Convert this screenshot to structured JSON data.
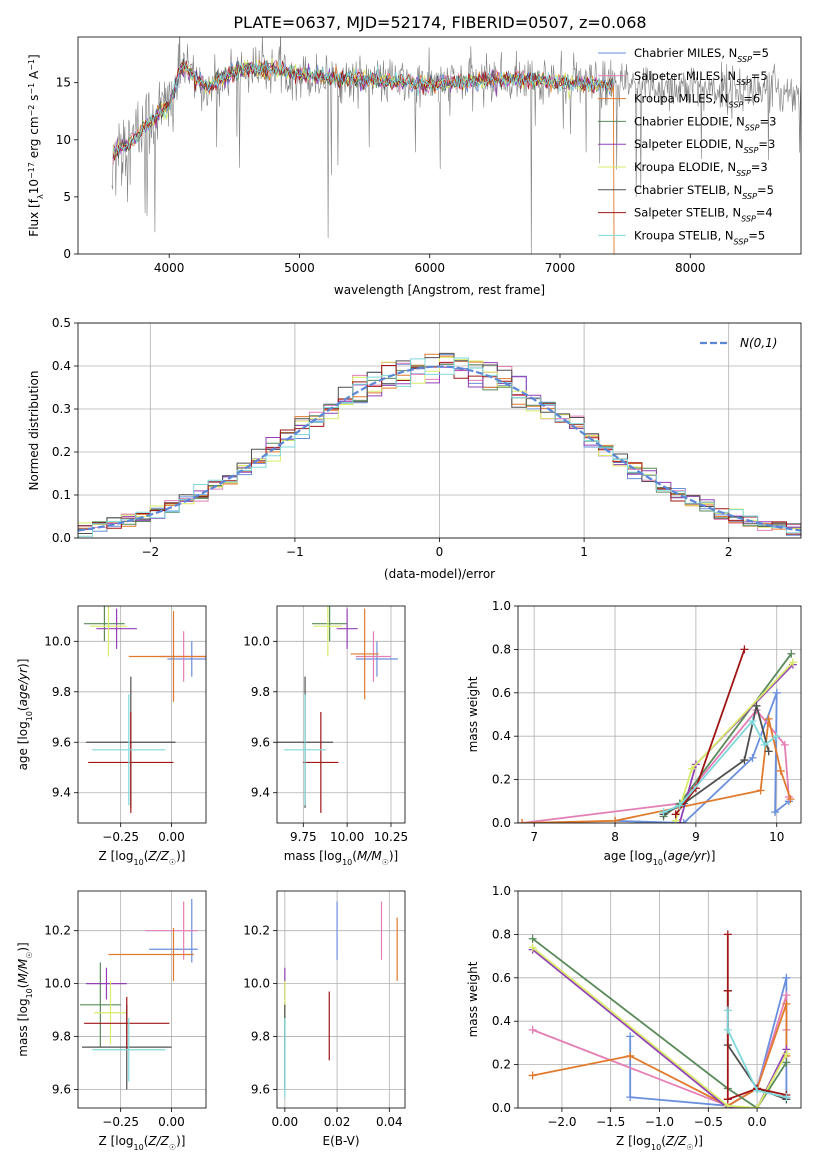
{
  "figure_title": "PLATE=0637, MJD=52174, FIBERID=0507, z=0.068",
  "colors": {
    "Chabrier MILES": "#6a8fdc",
    "Salpeter MILES": "#e47fb5",
    "Kroupa MILES": "#e07a2d",
    "Chabrier ELODIE": "#5a8a5a",
    "Salpeter ELODIE": "#9340b8",
    "Kroupa ELODIE": "#d9ec6a",
    "Chabrier STELIB": "#505050",
    "Salpeter STELIB": "#a01616",
    "Kroupa STELIB": "#7fd9dc",
    "data": "#808080",
    "normal": "#5b87d6"
  },
  "chart_data": [
    {
      "id": "spectrum",
      "type": "line",
      "title": "PLATE=0637, MJD=52174, FIBERID=0507, z=0.068",
      "xlabel": "wavelength [Angstrom, rest frame]",
      "ylabel": "Flux [f_λ 10^-17 erg cm^-2 s^-1 A^-1]",
      "xlim": [
        3300,
        8850
      ],
      "ylim": [
        0,
        19
      ],
      "xticks": [
        4000,
        5000,
        6000,
        7000,
        8000
      ],
      "yticks": [
        0,
        5,
        10,
        15
      ],
      "legend_position": "top-right",
      "legend": [
        {
          "name": "Chabrier MILES",
          "n_ssp": "5"
        },
        {
          "name": "Salpeter MILES",
          "n_ssp": "5"
        },
        {
          "name": "Kroupa MILES",
          "n_ssp": "6"
        },
        {
          "name": "Chabrier ELODIE",
          "n_ssp": "3"
        },
        {
          "name": "Salpeter ELODIE",
          "n_ssp": "3"
        },
        {
          "name": "Kroupa ELODIE",
          "n_ssp": "3"
        },
        {
          "name": "Chabrier STELIB",
          "n_ssp": "5"
        },
        {
          "name": "Salpeter STELIB",
          "n_ssp": "4"
        },
        {
          "name": "Kroupa STELIB",
          "n_ssp": "5"
        }
      ],
      "continuum": {
        "x": [
          3560,
          3600,
          3700,
          3800,
          3900,
          4000,
          4100,
          4200,
          4300,
          4400,
          4500,
          4600,
          4700,
          4800,
          4900,
          5000,
          5200,
          5400,
          5600,
          5800,
          6000,
          6200,
          6400,
          6600,
          6800,
          7000,
          7200,
          7400
        ],
        "y": [
          8.5,
          9.2,
          9.6,
          11.0,
          12.0,
          13.0,
          16.5,
          15.3,
          14.6,
          15.3,
          16.0,
          16.3,
          16.1,
          16.2,
          16.0,
          15.7,
          15.4,
          15.4,
          15.2,
          15.0,
          14.8,
          15.0,
          15.2,
          15.3,
          15.3,
          15.0,
          14.9,
          14.8
        ]
      },
      "model_end_wavelength": 7410,
      "data_end_wavelength": 8850
    },
    {
      "id": "residuals",
      "type": "line",
      "xlabel": "(data-model)/error",
      "ylabel": "Normed distribution",
      "xlim": [
        -2.5,
        2.5
      ],
      "ylim": [
        0,
        0.5
      ],
      "xticks": [
        -2,
        -1,
        0,
        1,
        2
      ],
      "yticks": [
        0.0,
        0.1,
        0.2,
        0.3,
        0.4,
        0.5
      ],
      "grid": true,
      "legend_position": "top-right",
      "normal_label": "N(0,1)",
      "bin_width": 0.1
    },
    {
      "id": "age_vs_Z",
      "type": "scatter",
      "xlabel": "Z [log10(Z/Z☉)]",
      "ylabel": "age [log10(age/yr)]",
      "xlim": [
        -0.46,
        0.17
      ],
      "ylim": [
        9.28,
        10.14
      ],
      "xticks": [
        -0.25,
        0.0
      ],
      "xticklabels": [
        "−0.25",
        "0.00"
      ],
      "yticks": [
        9.4,
        9.6,
        9.8,
        10.0
      ],
      "grid": true,
      "errorbars": [
        {
          "series": "Chabrier MILES",
          "x": 0.1,
          "y": 9.93,
          "x_err": 0.12,
          "y_err": 0.07
        },
        {
          "series": "Salpeter MILES",
          "x": 0.06,
          "y": 9.94,
          "x_err": 0.12,
          "y_err": 0.1
        },
        {
          "series": "Kroupa MILES",
          "x": 0.01,
          "y": 9.94,
          "x_err": 0.22,
          "y_err": 0.18
        },
        {
          "series": "Chabrier ELODIE",
          "x": -0.33,
          "y": 10.07,
          "x_err": 0.1,
          "y_err": 0.07
        },
        {
          "series": "Salpeter ELODIE",
          "x": -0.27,
          "y": 10.05,
          "x_err": 0.1,
          "y_err": 0.08
        },
        {
          "series": "Kroupa ELODIE",
          "x": -0.31,
          "y": 10.06,
          "x_err": 0.09,
          "y_err": 0.12
        },
        {
          "series": "Chabrier STELIB",
          "x": -0.2,
          "y": 9.6,
          "x_err": 0.22,
          "y_err": 0.26
        },
        {
          "series": "Salpeter STELIB",
          "x": -0.2,
          "y": 9.52,
          "x_err": 0.21,
          "y_err": 0.2
        },
        {
          "series": "Kroupa STELIB",
          "x": -0.21,
          "y": 9.57,
          "x_err": 0.18,
          "y_err": 0.22
        }
      ]
    },
    {
      "id": "age_vs_mass",
      "type": "scatter",
      "xlabel": "mass [log10(M/M☉)]",
      "xlim": [
        9.6,
        10.33
      ],
      "ylim": [
        9.28,
        10.14
      ],
      "xticks": [
        9.75,
        10.0,
        10.25
      ],
      "xticklabels": [
        "9.75",
        "10.00",
        "10.25"
      ],
      "yticks": [
        9.4,
        9.6,
        9.8,
        10.0
      ],
      "grid": true,
      "errorbars": [
        {
          "series": "Chabrier MILES",
          "x": 10.17,
          "y": 9.93,
          "x_err": 0.12,
          "y_err": 0.07
        },
        {
          "series": "Salpeter MILES",
          "x": 10.15,
          "y": 9.94,
          "x_err": 0.1,
          "y_err": 0.1
        },
        {
          "series": "Kroupa MILES",
          "x": 10.1,
          "y": 9.95,
          "x_err": 0.08,
          "y_err": 0.18
        },
        {
          "series": "Chabrier ELODIE",
          "x": 9.9,
          "y": 10.07,
          "x_err": 0.1,
          "y_err": 0.07
        },
        {
          "series": "Salpeter ELODIE",
          "x": 10.0,
          "y": 10.05,
          "x_err": 0.06,
          "y_err": 0.08
        },
        {
          "series": "Kroupa ELODIE",
          "x": 9.89,
          "y": 10.06,
          "x_err": 0.08,
          "y_err": 0.12
        },
        {
          "series": "Chabrier STELIB",
          "x": 9.76,
          "y": 9.6,
          "x_err": 0.16,
          "y_err": 0.26
        },
        {
          "series": "Salpeter STELIB",
          "x": 9.85,
          "y": 9.52,
          "x_err": 0.1,
          "y_err": 0.2
        },
        {
          "series": "Kroupa STELIB",
          "x": 9.76,
          "y": 9.57,
          "x_err": 0.12,
          "y_err": 0.22
        }
      ]
    },
    {
      "id": "mass_weight_vs_age",
      "type": "line",
      "xlabel": "age [log10(age/yr)]",
      "ylabel": "mass weight",
      "xlim": [
        6.8,
        10.3
      ],
      "ylim": [
        0,
        1.0
      ],
      "xticks": [
        7,
        8,
        9,
        10
      ],
      "yticks": [
        0.0,
        0.2,
        0.4,
        0.6,
        0.8,
        1.0
      ],
      "grid": true,
      "series": [
        {
          "name": "Chabrier MILES",
          "x": [
            8.0,
            8.85,
            9.7,
            10.0,
            9.98,
            10.15
          ],
          "y": [
            0.01,
            0.0,
            0.3,
            0.6,
            0.05,
            0.1
          ]
        },
        {
          "name": "Salpeter MILES",
          "x": [
            6.85,
            8.8,
            9.75,
            10.1,
            10.15
          ],
          "y": [
            0.0,
            0.09,
            0.52,
            0.36,
            0.12
          ]
        },
        {
          "name": "Kroupa MILES",
          "x": [
            6.85,
            8.0,
            9.8,
            9.9,
            10.05,
            10.17
          ],
          "y": [
            0.0,
            0.01,
            0.15,
            0.48,
            0.24,
            0.11
          ]
        },
        {
          "name": "Chabrier ELODIE",
          "x": [
            8.6,
            8.8,
            10.18
          ],
          "y": [
            0.03,
            0.09,
            0.78
          ]
        },
        {
          "name": "Salpeter ELODIE",
          "x": [
            8.8,
            9.0,
            10.2
          ],
          "y": [
            0.0,
            0.27,
            0.73
          ]
        },
        {
          "name": "Kroupa ELODIE",
          "x": [
            8.75,
            8.95,
            10.2
          ],
          "y": [
            0.01,
            0.25,
            0.74
          ]
        },
        {
          "name": "Chabrier STELIB",
          "x": [
            8.6,
            8.85,
            9.6,
            9.75,
            9.9
          ],
          "y": [
            0.04,
            0.09,
            0.29,
            0.54,
            0.33
          ]
        },
        {
          "name": "Salpeter STELIB",
          "x": [
            8.75,
            9.0,
            9.6
          ],
          "y": [
            0.04,
            0.16,
            0.8
          ]
        },
        {
          "name": "Kroupa STELIB",
          "x": [
            8.6,
            8.8,
            9.7,
            9.85,
            10.0
          ],
          "y": [
            0.05,
            0.08,
            0.47,
            0.36,
            0.4
          ]
        }
      ]
    },
    {
      "id": "mass_vs_Z",
      "type": "scatter",
      "xlabel": "Z [log10(Z/Z☉)]",
      "ylabel": "mass [log10(M/M☉)]",
      "xlim": [
        -0.46,
        0.17
      ],
      "ylim": [
        9.53,
        10.35
      ],
      "xticks": [
        -0.25,
        0.0
      ],
      "xticklabels": [
        "−0.25",
        "0.00"
      ],
      "yticks": [
        9.6,
        9.8,
        10.0,
        10.2
      ],
      "grid": true,
      "errorbars": [
        {
          "series": "Chabrier MILES",
          "x": 0.01,
          "y": 10.13,
          "x_err": 0.12,
          "y_err": 0.0
        },
        {
          "series": "Chabrier MILES",
          "x": 0.1,
          "y": 10.2,
          "x_err": 0.0,
          "y_err": 0.12
        },
        {
          "series": "Salpeter MILES",
          "x": 0.0,
          "y": 10.2,
          "x_err": 0.13,
          "y_err": 0.0
        },
        {
          "series": "Salpeter MILES",
          "x": 0.06,
          "y": 10.2,
          "x_err": 0.0,
          "y_err": 0.11
        },
        {
          "series": "Kroupa MILES",
          "x": -0.1,
          "y": 10.11,
          "x_err": 0.21,
          "y_err": 0.0
        },
        {
          "series": "Kroupa MILES",
          "x": 0.01,
          "y": 10.11,
          "x_err": 0.0,
          "y_err": 0.1
        },
        {
          "series": "Chabrier ELODIE",
          "x": -0.35,
          "y": 9.92,
          "x_err": 0.1,
          "y_err": 0.16
        },
        {
          "series": "Salpeter ELODIE",
          "x": -0.32,
          "y": 10.0,
          "x_err": 0.1,
          "y_err": 0.06
        },
        {
          "series": "Kroupa ELODIE",
          "x": -0.3,
          "y": 9.89,
          "x_err": 0.08,
          "y_err": 0.12
        },
        {
          "series": "Chabrier STELIB",
          "x": -0.22,
          "y": 9.76,
          "x_err": 0.22,
          "y_err": 0.16
        },
        {
          "series": "Salpeter STELIB",
          "x": -0.22,
          "y": 9.85,
          "x_err": 0.21,
          "y_err": 0.1
        },
        {
          "series": "Kroupa STELIB",
          "x": -0.21,
          "y": 9.75,
          "x_err": 0.18,
          "y_err": 0.12
        }
      ]
    },
    {
      "id": "mass_vs_ebv",
      "type": "scatter",
      "xlabel": "E(B-V)",
      "xlim": [
        -0.003,
        0.046
      ],
      "ylim": [
        9.53,
        10.35
      ],
      "xticks": [
        0.0,
        0.02,
        0.04
      ],
      "xticklabels": [
        "0.00",
        "0.02",
        "0.04"
      ],
      "yticks": [
        9.6,
        9.8,
        10.0,
        10.2
      ],
      "grid": true,
      "errorbars": [
        {
          "series": "Chabrier MILES",
          "x": 0.02,
          "y": 10.2,
          "x_err": 0.0,
          "y_err": 0.11
        },
        {
          "series": "Salpeter MILES",
          "x": 0.037,
          "y": 10.2,
          "x_err": 0.0,
          "y_err": 0.11
        },
        {
          "series": "Kroupa MILES",
          "x": 0.043,
          "y": 10.13,
          "x_err": 0.0,
          "y_err": 0.12
        },
        {
          "series": "Chabrier ELODIE",
          "x": 0.0,
          "y": 9.85,
          "x_err": 0.0,
          "y_err": 0.08
        },
        {
          "series": "Salpeter ELODIE",
          "x": 0.0,
          "y": 10.0,
          "x_err": 0.0,
          "y_err": 0.06
        },
        {
          "series": "Kroupa ELODIE",
          "x": 0.0,
          "y": 9.89,
          "x_err": 0.0,
          "y_err": 0.12
        },
        {
          "series": "Chabrier STELIB",
          "x": 0.0,
          "y": 9.76,
          "x_err": 0.0,
          "y_err": 0.16
        },
        {
          "series": "Salpeter STELIB",
          "x": 0.017,
          "y": 9.84,
          "x_err": 0.0,
          "y_err": 0.13
        },
        {
          "series": "Kroupa STELIB",
          "x": 0.0,
          "y": 9.72,
          "x_err": 0.0,
          "y_err": 0.15
        }
      ]
    },
    {
      "id": "mass_weight_vs_Z",
      "type": "line",
      "xlabel": "Z [log10(Z/Z☉)]",
      "ylabel": "mass weight",
      "xlim": [
        -2.45,
        0.45
      ],
      "ylim": [
        0,
        1.0
      ],
      "xticks": [
        -2.0,
        -1.5,
        -1.0,
        -0.5,
        0.0
      ],
      "xticklabels": [
        "−2.0",
        "−1.5",
        "−1.0",
        "−0.5",
        "0.0"
      ],
      "yticks": [
        0.0,
        0.2,
        0.4,
        0.6,
        0.8,
        1.0
      ],
      "grid": true,
      "series": [
        {
          "name": "Chabrier MILES",
          "x": [
            -1.3,
            -1.3,
            -0.3,
            0.0,
            0.3,
            0.3
          ],
          "y": [
            0.33,
            0.05,
            0.01,
            0.09,
            0.6,
            0.05
          ]
        },
        {
          "name": "Salpeter MILES",
          "x": [
            -2.3,
            -0.3,
            0.0,
            0.3,
            0.3
          ],
          "y": [
            0.36,
            0.01,
            0.09,
            0.52,
            0.36
          ]
        },
        {
          "name": "Kroupa MILES",
          "x": [
            -2.3,
            -1.3,
            -0.3,
            0.0,
            0.3,
            0.3
          ],
          "y": [
            0.15,
            0.24,
            0.01,
            0.09,
            0.48,
            0.24
          ]
        },
        {
          "name": "Chabrier ELODIE",
          "x": [
            -2.3,
            -0.3,
            0.0,
            0.3
          ],
          "y": [
            0.78,
            0.09,
            0.0,
            0.21
          ]
        },
        {
          "name": "Salpeter ELODIE",
          "x": [
            -2.3,
            -0.3,
            0.0,
            0.3
          ],
          "y": [
            0.73,
            0.0,
            0.0,
            0.27
          ]
        },
        {
          "name": "Kroupa ELODIE",
          "x": [
            -2.3,
            -0.3,
            0.0,
            0.3
          ],
          "y": [
            0.74,
            0.01,
            0.0,
            0.25
          ]
        },
        {
          "name": "Chabrier STELIB",
          "x": [
            -0.3,
            -0.3,
            0.0,
            0.3
          ],
          "y": [
            0.54,
            0.29,
            0.09,
            0.04
          ]
        },
        {
          "name": "Salpeter STELIB",
          "x": [
            -0.3,
            -0.3,
            -0.3,
            0.0,
            0.3
          ],
          "y": [
            0.8,
            0.54,
            0.04,
            0.09,
            0.06
          ]
        },
        {
          "name": "Kroupa STELIB",
          "x": [
            -0.3,
            -0.3,
            0.0,
            0.3
          ],
          "y": [
            0.45,
            0.36,
            0.08,
            0.05
          ]
        }
      ]
    }
  ]
}
